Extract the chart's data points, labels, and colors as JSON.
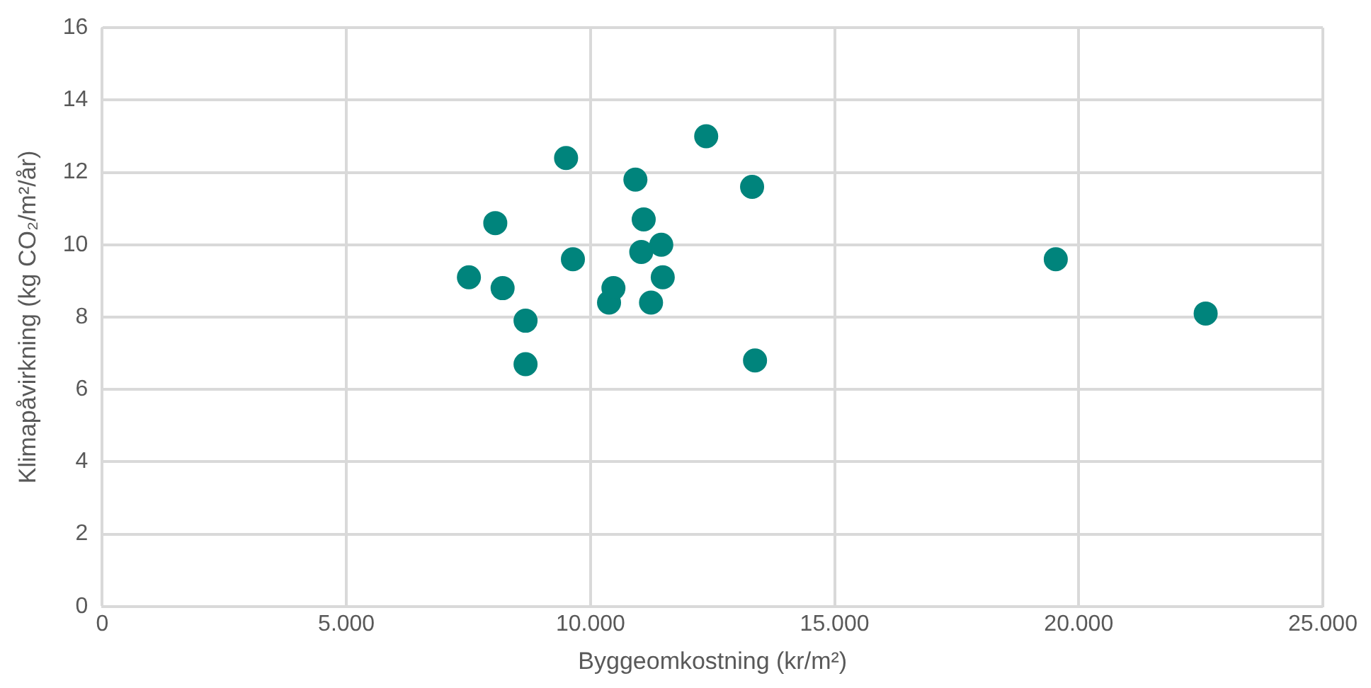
{
  "chart_data": {
    "type": "scatter",
    "xlabel": "Byggeomkostning (kr/m²)",
    "ylabel": "Klimapåvirkning (kg CO₂/m²/år)",
    "x": [
      7510,
      8050,
      8200,
      8670,
      8670,
      9500,
      9640,
      10380,
      10470,
      10920,
      11090,
      11040,
      11450,
      11480,
      11240,
      12370,
      13310,
      13370,
      19530,
      22600
    ],
    "series": [
      {
        "color": "#00847c",
        "values": [
          9.1,
          10.6,
          8.8,
          7.9,
          6.7,
          12.4,
          9.6,
          8.4,
          8.8,
          11.8,
          10.7,
          9.8,
          10.0,
          9.1,
          8.4,
          13.0,
          11.6,
          6.8,
          9.6,
          8.1
        ]
      }
    ],
    "xlim": [
      0,
      25000
    ],
    "xticks": [
      {
        "value": 0,
        "label": "0"
      },
      {
        "value": 5000,
        "label": "5.000"
      },
      {
        "value": 10000,
        "label": "10.000"
      },
      {
        "value": 15000,
        "label": "15.000"
      },
      {
        "value": 20000,
        "label": "20.000"
      },
      {
        "value": 25000,
        "label": "25.000"
      }
    ],
    "ylim": [
      0,
      16
    ],
    "yticks": [
      0,
      2,
      4,
      6,
      8,
      10,
      12,
      14,
      16
    ],
    "grid": true,
    "marker": "circle",
    "legend": false
  }
}
